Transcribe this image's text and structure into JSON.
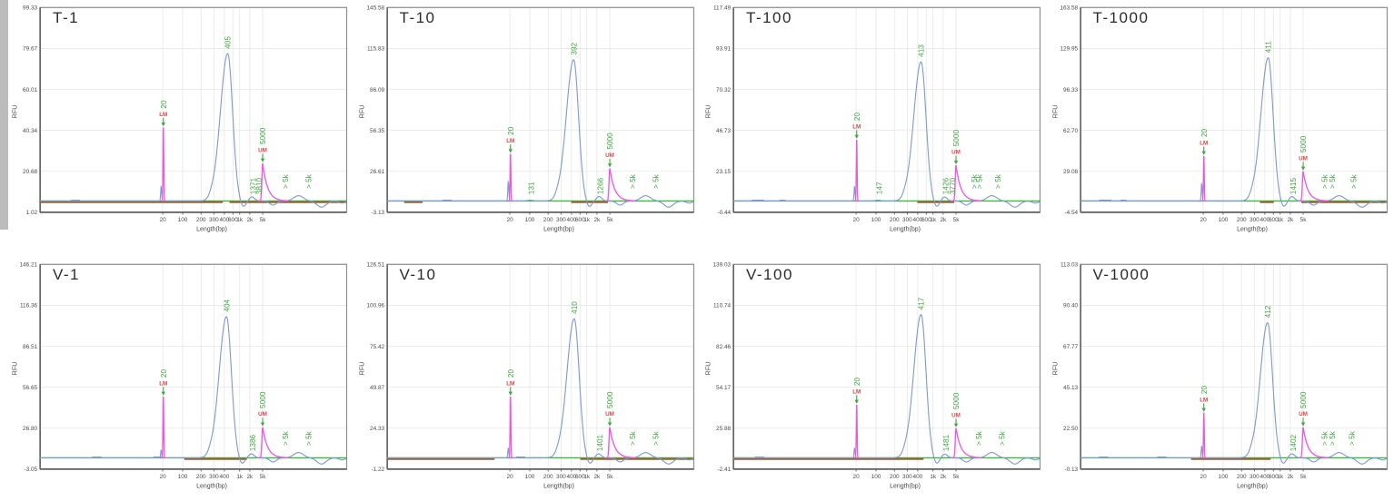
{
  "figure": {
    "description": "Capillary electrophoresis fragment-analyzer electropherograms, 2 rows x 4 columns",
    "rows": 2,
    "cols": 4
  },
  "colors": {
    "trace_blue": "#7e99d1",
    "marker_pink": "#ee55e0",
    "label_green": "#3fa63f",
    "marker_red": "#e04545",
    "baseline_green": "#3cb83c",
    "region_brown": "#9a6233",
    "grid_line": "#e7e7e7",
    "axis_frame": "#8f8f8f",
    "axis_dark": "#5f5f5f",
    "tick_text": "#4a4a4a",
    "title_text": "#2b2b2b",
    "window_strip": "#bcbcbc"
  },
  "axis": {
    "ylabel": "RFU",
    "xlabel": "Length(bp)",
    "scale_note": "nonlinear migration-time axis",
    "tick_positions": {
      "20": 0.4,
      "100": 0.465,
      "200": 0.525,
      "300": 0.567,
      "400": 0.601,
      "600": 0.629,
      "1k": 0.651,
      "2k": 0.684,
      "5k": 0.726
    }
  },
  "chart_data": [
    {
      "id": "t-1",
      "title": "T-1",
      "type": "line",
      "ylabel": "RFU",
      "xlabel": "Length(bp)",
      "y_ticks": [
        "99.33",
        "79.67",
        "60.01",
        "40.34",
        "20.68",
        "1.02"
      ],
      "ylim": [
        1.02,
        99.33
      ],
      "x_ticks": [
        "20",
        "100",
        "200",
        "300",
        "400",
        "600",
        "1k",
        "2k",
        "5k"
      ],
      "lower_marker": {
        "bp": "20",
        "tag": "LM",
        "x": 0.402,
        "height": 0.36
      },
      "upper_marker": {
        "bp": "5000",
        "tag": "UM",
        "x": 0.726,
        "height": 0.185
      },
      "main_peak": {
        "bp": "405",
        "x": 0.612,
        "height": 0.72
      },
      "pre_spike": 0.075,
      "minor_peaks": [
        {
          "label": "1371",
          "x": 0.695,
          "bump": 0.02
        },
        {
          "label": "3810",
          "x": 0.714,
          "bump": 0.0
        }
      ],
      "over_labels": [
        {
          "label": "> 5k",
          "x": 0.8
        },
        {
          "label": "> 5k",
          "x": 0.875
        }
      ],
      "brown_segments": [
        [
          0.0,
          0.596
        ],
        [
          0.618,
          1.0
        ]
      ],
      "noise_dashes": [
        [
          0.1,
          0.13
        ]
      ]
    },
    {
      "id": "t-10",
      "title": "T-10",
      "type": "line",
      "ylabel": "RFU",
      "xlabel": "Length(bp)",
      "y_ticks": [
        "145.58",
        "115.83",
        "86.09",
        "56.35",
        "26.61",
        "-3.13"
      ],
      "ylim": [
        -3.13,
        145.58
      ],
      "x_ticks": [
        "20",
        "100",
        "200",
        "300",
        "400",
        "600",
        "1k",
        "2k",
        "5k"
      ],
      "lower_marker": {
        "bp": "20",
        "tag": "LM",
        "x": 0.402,
        "height": 0.23
      },
      "upper_marker": {
        "bp": "5000",
        "tag": "UM",
        "x": 0.726,
        "height": 0.16
      },
      "main_peak": {
        "bp": "392",
        "x": 0.608,
        "height": 0.69
      },
      "pre_spike": 0.1,
      "minor_peaks": [
        {
          "label": "131",
          "x": 0.47,
          "bump": 0.004
        },
        {
          "label": "1266",
          "x": 0.695,
          "bump": 0.022
        }
      ],
      "over_labels": [
        {
          "label": "> 5k",
          "x": 0.8
        },
        {
          "label": "> 5k",
          "x": 0.875
        }
      ],
      "brown_segments": [
        [
          0.055,
          0.115
        ],
        [
          0.6,
          0.72
        ]
      ],
      "noise_dashes": [
        [
          0.18,
          0.21
        ]
      ]
    },
    {
      "id": "t-100",
      "title": "T-100",
      "type": "line",
      "ylabel": "RFU",
      "xlabel": "Length(bp)",
      "y_ticks": [
        "117.49",
        "93.91",
        "70.32",
        "46.73",
        "23.15",
        "-0.44"
      ],
      "ylim": [
        -0.44,
        117.49
      ],
      "x_ticks": [
        "20",
        "100",
        "200",
        "300",
        "400",
        "600",
        "1k",
        "2k",
        "5k"
      ],
      "lower_marker": {
        "bp": "20",
        "tag": "LM",
        "x": 0.402,
        "height": 0.3
      },
      "upper_marker": {
        "bp": "5000",
        "tag": "UM",
        "x": 0.726,
        "height": 0.175
      },
      "main_peak": {
        "bp": "413",
        "x": 0.612,
        "height": 0.68
      },
      "pre_spike": 0.075,
      "minor_peaks": [
        {
          "label": "147",
          "x": 0.475,
          "bump": 0.004
        },
        {
          "label": "1426",
          "x": 0.692,
          "bump": 0.02
        },
        {
          "label": "3770",
          "x": 0.714,
          "bump": 0.0
        }
      ],
      "over_labels": [
        {
          "label": "> 5k",
          "x": 0.785
        },
        {
          "label": "> 5k",
          "x": 0.802
        },
        {
          "label": "> 5k",
          "x": 0.862
        }
      ],
      "brown_segments": [
        [
          0.6,
          0.72
        ]
      ],
      "noise_dashes": [
        [
          0.06,
          0.1
        ],
        [
          0.15,
          0.17
        ]
      ]
    },
    {
      "id": "t-1000",
      "title": "T-1000",
      "type": "line",
      "ylabel": "RFU",
      "xlabel": "Length(bp)",
      "y_ticks": [
        "163.58",
        "129.95",
        "96.33",
        "62.70",
        "29.08",
        "-4.54"
      ],
      "ylim": [
        -4.54,
        163.58
      ],
      "x_ticks": [
        "20",
        "100",
        "200",
        "300",
        "400",
        "600",
        "1k",
        "2k",
        "5k"
      ],
      "lower_marker": {
        "bp": "20",
        "tag": "LM",
        "x": 0.402,
        "height": 0.22
      },
      "upper_marker": {
        "bp": "5000",
        "tag": "UM",
        "x": 0.726,
        "height": 0.145
      },
      "main_peak": {
        "bp": "411",
        "x": 0.612,
        "height": 0.7
      },
      "pre_spike": 0.09,
      "minor_peaks": [
        {
          "label": "1415",
          "x": 0.693,
          "bump": 0.022
        }
      ],
      "over_labels": [
        {
          "label": "> 5k",
          "x": 0.795
        },
        {
          "label": "> 5k",
          "x": 0.82
        },
        {
          "label": "> 5k",
          "x": 0.89
        }
      ],
      "brown_segments": [
        [
          0.585,
          0.63
        ],
        [
          0.72,
          1.0
        ]
      ],
      "noise_dashes": [
        [
          0.06,
          0.1
        ],
        [
          0.13,
          0.15
        ]
      ]
    },
    {
      "id": "v-1",
      "title": "V-1",
      "type": "line",
      "ylabel": "RFU",
      "xlabel": "Length(bp)",
      "y_ticks": [
        "146.21",
        "116.36",
        "86.51",
        "56.65",
        "26.80",
        "-3.05"
      ],
      "ylim": [
        -3.05,
        146.21
      ],
      "x_ticks": [
        "20",
        "100",
        "200",
        "300",
        "400",
        "1k",
        "2k",
        "5k"
      ],
      "lower_marker": {
        "bp": "20",
        "tag": "LM",
        "x": 0.402,
        "height": 0.3
      },
      "upper_marker": {
        "bp": "5000",
        "tag": "UM",
        "x": 0.726,
        "height": 0.15
      },
      "main_peak": {
        "bp": "404",
        "x": 0.608,
        "height": 0.69
      },
      "pre_spike": 0.04,
      "minor_peaks": [
        {
          "label": "1386",
          "x": 0.693,
          "bump": 0.02
        }
      ],
      "over_labels": [
        {
          "label": "> 5k",
          "x": 0.8
        },
        {
          "label": "> 5k",
          "x": 0.875
        }
      ],
      "brown_segments": [
        [
          0.47,
          0.675
        ]
      ],
      "noise_dashes": [
        [
          0.17,
          0.2
        ],
        [
          0.37,
          0.4
        ]
      ]
    },
    {
      "id": "v-10",
      "title": "V-10",
      "type": "line",
      "ylabel": "RFU",
      "xlabel": "Length(bp)",
      "y_ticks": [
        "126.51",
        "100.96",
        "75.42",
        "49.87",
        "24.33",
        "-1.22"
      ],
      "ylim": [
        -1.22,
        126.51
      ],
      "x_ticks": [
        "20",
        "100",
        "200",
        "300",
        "400",
        "600",
        "1k",
        "2k",
        "5k"
      ],
      "lower_marker": {
        "bp": "20",
        "tag": "LM",
        "x": 0.402,
        "height": 0.3
      },
      "upper_marker": {
        "bp": "5000",
        "tag": "UM",
        "x": 0.726,
        "height": 0.15
      },
      "main_peak": {
        "bp": "410",
        "x": 0.61,
        "height": 0.68
      },
      "pre_spike": 0.05,
      "minor_peaks": [
        {
          "label": "1401",
          "x": 0.693,
          "bump": 0.02
        }
      ],
      "over_labels": [
        {
          "label": "> 5k",
          "x": 0.8
        },
        {
          "label": "> 5k",
          "x": 0.875
        }
      ],
      "brown_segments": [
        [
          0.0,
          0.35
        ],
        [
          0.63,
          1.0
        ]
      ],
      "noise_dashes": [
        [
          0.42,
          0.45
        ]
      ]
    },
    {
      "id": "v-100",
      "title": "V-100",
      "type": "line",
      "ylabel": "RFU",
      "xlabel": "Length(bp)",
      "y_ticks": [
        "139.03",
        "110.74",
        "82.46",
        "54.17",
        "25.88",
        "-2.41"
      ],
      "ylim": [
        -2.41,
        139.03
      ],
      "x_ticks": [
        "20",
        "100",
        "200",
        "300",
        "400",
        "1k",
        "2k",
        "5k"
      ],
      "lower_marker": {
        "bp": "20",
        "tag": "LM",
        "x": 0.402,
        "height": 0.26
      },
      "upper_marker": {
        "bp": "5000",
        "tag": "UM",
        "x": 0.726,
        "height": 0.145
      },
      "main_peak": {
        "bp": "417",
        "x": 0.612,
        "height": 0.7
      },
      "pre_spike": 0.05,
      "minor_peaks": [
        {
          "label": "1481",
          "x": 0.693,
          "bump": 0.018
        }
      ],
      "over_labels": [
        {
          "label": "> 5k",
          "x": 0.8
        },
        {
          "label": "> 5k",
          "x": 0.875
        }
      ],
      "brown_segments": [
        [
          0.0,
          0.62
        ]
      ],
      "noise_dashes": [
        [
          0.07,
          0.1
        ]
      ]
    },
    {
      "id": "v-1000",
      "title": "V-1000",
      "type": "line",
      "ylabel": "RFU",
      "xlabel": "Length(bp)",
      "y_ticks": [
        "113.03",
        "90.40",
        "67.77",
        "45.13",
        "22.50",
        "-0.13"
      ],
      "ylim": [
        -0.13,
        113.03
      ],
      "x_ticks": [
        "20",
        "100",
        "200",
        "300",
        "400",
        "600",
        "1k",
        "2k",
        "5k"
      ],
      "lower_marker": {
        "bp": "20",
        "tag": "LM",
        "x": 0.402,
        "height": 0.22
      },
      "upper_marker": {
        "bp": "5000",
        "tag": "UM",
        "x": 0.726,
        "height": 0.15
      },
      "main_peak": {
        "bp": "412",
        "x": 0.61,
        "height": 0.66
      },
      "pre_spike": 0.06,
      "minor_peaks": [
        {
          "label": "1402",
          "x": 0.693,
          "bump": 0.02
        }
      ],
      "over_labels": [
        {
          "label": "> 5k",
          "x": 0.795
        },
        {
          "label": "> 5k",
          "x": 0.82
        },
        {
          "label": "> 5k",
          "x": 0.885
        }
      ],
      "brown_segments": [
        [
          0.36,
          0.62
        ]
      ],
      "noise_dashes": [
        [
          0.06,
          0.09
        ],
        [
          0.25,
          0.28
        ]
      ]
    }
  ]
}
